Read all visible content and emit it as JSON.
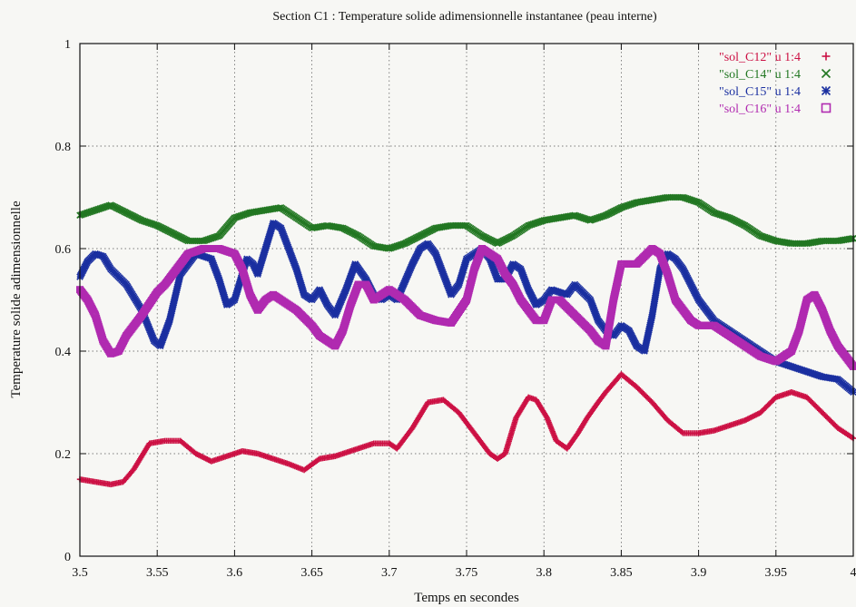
{
  "chart_data": {
    "type": "scatter",
    "title": "Section C1 : Temperature solide adimensionnelle instantanee (peau interne)",
    "xlabel": "Temps en secondes",
    "ylabel": "Temperature solide adimensionnelle",
    "xlim": [
      3.5,
      4.0
    ],
    "ylim": [
      0,
      1
    ],
    "x_ticks": [
      "3.5",
      "3.55",
      "3.6",
      "3.65",
      "3.7",
      "3.75",
      "3.8",
      "3.85",
      "3.9",
      "3.95",
      "4"
    ],
    "y_ticks": [
      "0",
      "0.2",
      "0.4",
      "0.6",
      "0.8",
      "1"
    ],
    "grid": true,
    "legend_position": "top-right",
    "series": [
      {
        "name": "\"sol_C12\" u 1:4",
        "marker": "plus",
        "color": "#cc1144",
        "points": [
          [
            3.5,
            0.15
          ],
          [
            3.51,
            0.145
          ],
          [
            3.52,
            0.14
          ],
          [
            3.528,
            0.145
          ],
          [
            3.535,
            0.17
          ],
          [
            3.545,
            0.22
          ],
          [
            3.555,
            0.225
          ],
          [
            3.565,
            0.225
          ],
          [
            3.575,
            0.2
          ],
          [
            3.585,
            0.185
          ],
          [
            3.595,
            0.195
          ],
          [
            3.605,
            0.205
          ],
          [
            3.615,
            0.2
          ],
          [
            3.625,
            0.19
          ],
          [
            3.635,
            0.18
          ],
          [
            3.645,
            0.168
          ],
          [
            3.655,
            0.19
          ],
          [
            3.665,
            0.195
          ],
          [
            3.68,
            0.21
          ],
          [
            3.69,
            0.22
          ],
          [
            3.7,
            0.22
          ],
          [
            3.705,
            0.21
          ],
          [
            3.715,
            0.25
          ],
          [
            3.725,
            0.3
          ],
          [
            3.735,
            0.305
          ],
          [
            3.745,
            0.28
          ],
          [
            3.755,
            0.24
          ],
          [
            3.765,
            0.2
          ],
          [
            3.77,
            0.19
          ],
          [
            3.775,
            0.2
          ],
          [
            3.782,
            0.27
          ],
          [
            3.79,
            0.31
          ],
          [
            3.795,
            0.305
          ],
          [
            3.802,
            0.27
          ],
          [
            3.808,
            0.225
          ],
          [
            3.815,
            0.21
          ],
          [
            3.822,
            0.24
          ],
          [
            3.828,
            0.27
          ],
          [
            3.835,
            0.3
          ],
          [
            3.84,
            0.32
          ],
          [
            3.85,
            0.355
          ],
          [
            3.86,
            0.33
          ],
          [
            3.87,
            0.3
          ],
          [
            3.88,
            0.265
          ],
          [
            3.89,
            0.24
          ],
          [
            3.9,
            0.24
          ],
          [
            3.91,
            0.245
          ],
          [
            3.92,
            0.255
          ],
          [
            3.93,
            0.265
          ],
          [
            3.94,
            0.28
          ],
          [
            3.95,
            0.31
          ],
          [
            3.96,
            0.32
          ],
          [
            3.97,
            0.31
          ],
          [
            3.98,
            0.28
          ],
          [
            3.99,
            0.25
          ],
          [
            4.0,
            0.23
          ]
        ]
      },
      {
        "name": "\"sol_C14\" u 1:4",
        "marker": "x",
        "color": "#227722",
        "points": [
          [
            3.5,
            0.665
          ],
          [
            3.51,
            0.675
          ],
          [
            3.52,
            0.685
          ],
          [
            3.53,
            0.67
          ],
          [
            3.54,
            0.655
          ],
          [
            3.55,
            0.645
          ],
          [
            3.56,
            0.63
          ],
          [
            3.57,
            0.615
          ],
          [
            3.58,
            0.615
          ],
          [
            3.59,
            0.625
          ],
          [
            3.6,
            0.66
          ],
          [
            3.61,
            0.67
          ],
          [
            3.62,
            0.675
          ],
          [
            3.63,
            0.68
          ],
          [
            3.64,
            0.66
          ],
          [
            3.65,
            0.64
          ],
          [
            3.66,
            0.645
          ],
          [
            3.67,
            0.64
          ],
          [
            3.68,
            0.625
          ],
          [
            3.69,
            0.605
          ],
          [
            3.7,
            0.6
          ],
          [
            3.71,
            0.61
          ],
          [
            3.72,
            0.625
          ],
          [
            3.73,
            0.64
          ],
          [
            3.74,
            0.645
          ],
          [
            3.75,
            0.645
          ],
          [
            3.76,
            0.625
          ],
          [
            3.77,
            0.61
          ],
          [
            3.78,
            0.625
          ],
          [
            3.79,
            0.645
          ],
          [
            3.8,
            0.655
          ],
          [
            3.81,
            0.66
          ],
          [
            3.82,
            0.665
          ],
          [
            3.83,
            0.655
          ],
          [
            3.84,
            0.665
          ],
          [
            3.85,
            0.68
          ],
          [
            3.86,
            0.69
          ],
          [
            3.87,
            0.695
          ],
          [
            3.88,
            0.7
          ],
          [
            3.89,
            0.7
          ],
          [
            3.9,
            0.69
          ],
          [
            3.91,
            0.67
          ],
          [
            3.92,
            0.66
          ],
          [
            3.93,
            0.645
          ],
          [
            3.94,
            0.625
          ],
          [
            3.95,
            0.615
          ],
          [
            3.96,
            0.61
          ],
          [
            3.97,
            0.61
          ],
          [
            3.98,
            0.615
          ],
          [
            3.99,
            0.615
          ],
          [
            4.0,
            0.62
          ]
        ]
      },
      {
        "name": "\"sol_C15\" u 1:4",
        "marker": "star",
        "color": "#1a2fa0",
        "points": [
          [
            3.5,
            0.545
          ],
          [
            3.505,
            0.575
          ],
          [
            3.51,
            0.59
          ],
          [
            3.515,
            0.585
          ],
          [
            3.52,
            0.56
          ],
          [
            3.53,
            0.53
          ],
          [
            3.54,
            0.48
          ],
          [
            3.548,
            0.42
          ],
          [
            3.552,
            0.41
          ],
          [
            3.558,
            0.46
          ],
          [
            3.565,
            0.55
          ],
          [
            3.575,
            0.59
          ],
          [
            3.585,
            0.58
          ],
          [
            3.59,
            0.54
          ],
          [
            3.595,
            0.49
          ],
          [
            3.6,
            0.5
          ],
          [
            3.608,
            0.58
          ],
          [
            3.612,
            0.57
          ],
          [
            3.615,
            0.55
          ],
          [
            3.62,
            0.6
          ],
          [
            3.625,
            0.65
          ],
          [
            3.63,
            0.64
          ],
          [
            3.635,
            0.6
          ],
          [
            3.64,
            0.56
          ],
          [
            3.645,
            0.51
          ],
          [
            3.65,
            0.5
          ],
          [
            3.655,
            0.52
          ],
          [
            3.66,
            0.49
          ],
          [
            3.665,
            0.47
          ],
          [
            3.672,
            0.52
          ],
          [
            3.678,
            0.57
          ],
          [
            3.685,
            0.54
          ],
          [
            3.69,
            0.51
          ],
          [
            3.695,
            0.5
          ],
          [
            3.7,
            0.51
          ],
          [
            3.705,
            0.5
          ],
          [
            3.715,
            0.57
          ],
          [
            3.72,
            0.6
          ],
          [
            3.725,
            0.61
          ],
          [
            3.73,
            0.59
          ],
          [
            3.735,
            0.55
          ],
          [
            3.74,
            0.51
          ],
          [
            3.745,
            0.53
          ],
          [
            3.75,
            0.58
          ],
          [
            3.76,
            0.6
          ],
          [
            3.765,
            0.58
          ],
          [
            3.77,
            0.54
          ],
          [
            3.775,
            0.54
          ],
          [
            3.78,
            0.57
          ],
          [
            3.785,
            0.56
          ],
          [
            3.79,
            0.52
          ],
          [
            3.795,
            0.49
          ],
          [
            3.8,
            0.5
          ],
          [
            3.805,
            0.52
          ],
          [
            3.815,
            0.51
          ],
          [
            3.82,
            0.53
          ],
          [
            3.83,
            0.5
          ],
          [
            3.835,
            0.46
          ],
          [
            3.84,
            0.44
          ],
          [
            3.845,
            0.43
          ],
          [
            3.85,
            0.45
          ],
          [
            3.855,
            0.44
          ],
          [
            3.86,
            0.41
          ],
          [
            3.865,
            0.4
          ],
          [
            3.87,
            0.47
          ],
          [
            3.875,
            0.56
          ],
          [
            3.88,
            0.59
          ],
          [
            3.885,
            0.58
          ],
          [
            3.89,
            0.56
          ],
          [
            3.9,
            0.5
          ],
          [
            3.91,
            0.46
          ],
          [
            3.92,
            0.44
          ],
          [
            3.93,
            0.42
          ],
          [
            3.94,
            0.4
          ],
          [
            3.95,
            0.38
          ],
          [
            3.96,
            0.37
          ],
          [
            3.97,
            0.36
          ],
          [
            3.98,
            0.35
          ],
          [
            3.99,
            0.345
          ],
          [
            4.0,
            0.32
          ]
        ]
      },
      {
        "name": "\"sol_C16\" u 1:4",
        "marker": "square",
        "color": "#b02ab0",
        "points": [
          [
            3.5,
            0.52
          ],
          [
            3.505,
            0.5
          ],
          [
            3.51,
            0.47
          ],
          [
            3.515,
            0.42
          ],
          [
            3.52,
            0.395
          ],
          [
            3.525,
            0.4
          ],
          [
            3.53,
            0.43
          ],
          [
            3.54,
            0.47
          ],
          [
            3.55,
            0.515
          ],
          [
            3.555,
            0.53
          ],
          [
            3.56,
            0.55
          ],
          [
            3.565,
            0.57
          ],
          [
            3.57,
            0.59
          ],
          [
            3.58,
            0.6
          ],
          [
            3.59,
            0.6
          ],
          [
            3.6,
            0.59
          ],
          [
            3.605,
            0.56
          ],
          [
            3.61,
            0.51
          ],
          [
            3.615,
            0.48
          ],
          [
            3.62,
            0.5
          ],
          [
            3.625,
            0.51
          ],
          [
            3.63,
            0.5
          ],
          [
            3.64,
            0.48
          ],
          [
            3.65,
            0.45
          ],
          [
            3.655,
            0.43
          ],
          [
            3.66,
            0.42
          ],
          [
            3.665,
            0.41
          ],
          [
            3.67,
            0.44
          ],
          [
            3.675,
            0.49
          ],
          [
            3.68,
            0.53
          ],
          [
            3.685,
            0.53
          ],
          [
            3.69,
            0.5
          ],
          [
            3.7,
            0.52
          ],
          [
            3.71,
            0.5
          ],
          [
            3.72,
            0.47
          ],
          [
            3.73,
            0.46
          ],
          [
            3.74,
            0.455
          ],
          [
            3.75,
            0.5
          ],
          [
            3.755,
            0.56
          ],
          [
            3.76,
            0.6
          ],
          [
            3.765,
            0.59
          ],
          [
            3.77,
            0.58
          ],
          [
            3.775,
            0.55
          ],
          [
            3.78,
            0.53
          ],
          [
            3.785,
            0.5
          ],
          [
            3.79,
            0.48
          ],
          [
            3.795,
            0.46
          ],
          [
            3.8,
            0.46
          ],
          [
            3.805,
            0.5
          ],
          [
            3.81,
            0.5
          ],
          [
            3.82,
            0.47
          ],
          [
            3.83,
            0.44
          ],
          [
            3.835,
            0.42
          ],
          [
            3.84,
            0.41
          ],
          [
            3.845,
            0.5
          ],
          [
            3.85,
            0.57
          ],
          [
            3.86,
            0.57
          ],
          [
            3.87,
            0.6
          ],
          [
            3.875,
            0.59
          ],
          [
            3.88,
            0.55
          ],
          [
            3.885,
            0.5
          ],
          [
            3.89,
            0.48
          ],
          [
            3.895,
            0.46
          ],
          [
            3.9,
            0.45
          ],
          [
            3.91,
            0.45
          ],
          [
            3.92,
            0.43
          ],
          [
            3.93,
            0.41
          ],
          [
            3.94,
            0.39
          ],
          [
            3.95,
            0.38
          ],
          [
            3.96,
            0.4
          ],
          [
            3.965,
            0.44
          ],
          [
            3.97,
            0.5
          ],
          [
            3.975,
            0.51
          ],
          [
            3.98,
            0.48
          ],
          [
            3.985,
            0.44
          ],
          [
            3.99,
            0.41
          ],
          [
            4.0,
            0.37
          ]
        ]
      }
    ]
  }
}
